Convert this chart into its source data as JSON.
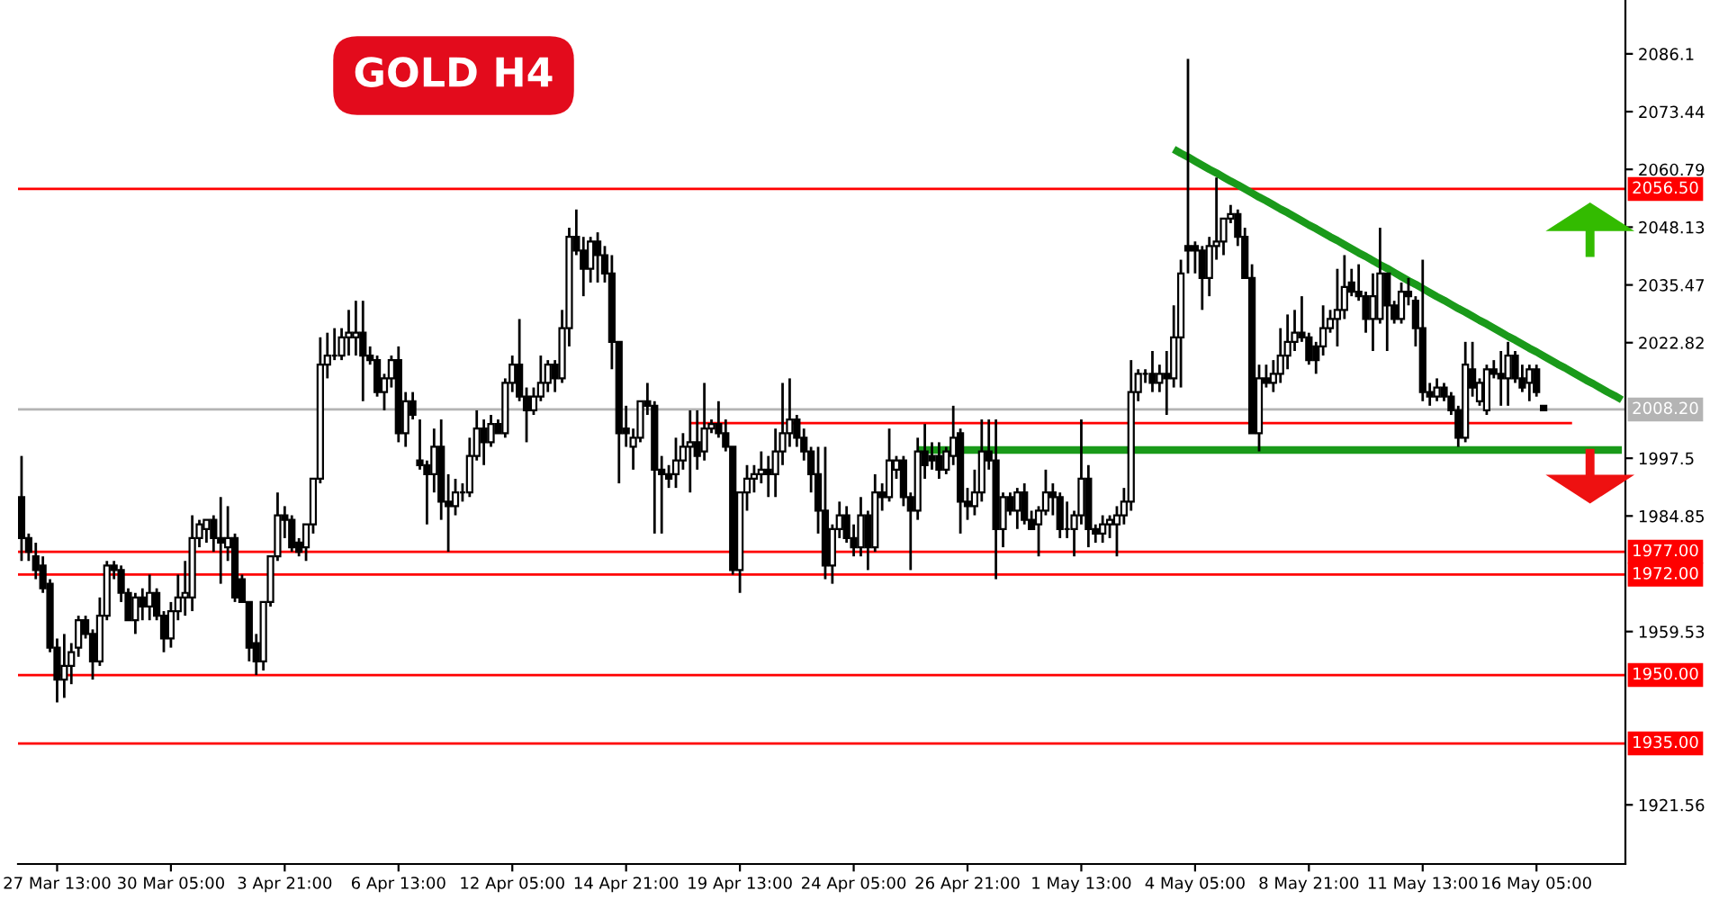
{
  "chart_data": {
    "type": "candlestick",
    "title": "GOLD H4",
    "categories": [
      null,
      null,
      null,
      null,
      null,
      "27 Mar 13:00",
      null,
      null,
      null,
      null,
      null,
      null,
      null,
      null,
      null,
      null,
      null,
      null,
      null,
      null,
      null,
      "30 Mar 05:00",
      null,
      null,
      null,
      null,
      null,
      null,
      null,
      null,
      null,
      null,
      null,
      null,
      null,
      null,
      null,
      "3 Apr 21:00",
      null,
      null,
      null,
      null,
      null,
      null,
      null,
      null,
      null,
      null,
      null,
      null,
      null,
      null,
      null,
      "6 Apr 13:00",
      null,
      null,
      null,
      null,
      null,
      null,
      null,
      null,
      null,
      null,
      null,
      null,
      null,
      null,
      null,
      "12 Apr 05:00",
      null,
      null,
      null,
      null,
      null,
      null,
      null,
      null,
      null,
      null,
      null,
      null,
      null,
      null,
      null,
      "14 Apr 21:00",
      null,
      null,
      null,
      null,
      null,
      null,
      null,
      null,
      null,
      null,
      null,
      null,
      null,
      null,
      null,
      "19 Apr 13:00",
      null,
      null,
      null,
      null,
      null,
      null,
      null,
      null,
      null,
      null,
      null,
      null,
      null,
      null,
      null,
      "24 Apr 05:00",
      null,
      null,
      null,
      null,
      null,
      null,
      null,
      null,
      null,
      null,
      null,
      null,
      null,
      null,
      null,
      "26 Apr 21:00",
      null,
      null,
      null,
      null,
      null,
      null,
      null,
      null,
      null,
      null,
      null,
      null,
      null,
      null,
      null,
      "1 May 13:00",
      null,
      null,
      null,
      null,
      null,
      null,
      null,
      null,
      null,
      null,
      null,
      null,
      null,
      null,
      null,
      "4 May 05:00",
      null,
      null,
      null,
      null,
      null,
      null,
      null,
      null,
      null,
      null,
      null,
      null,
      null,
      null,
      null,
      "8 May 21:00",
      null,
      null,
      null,
      null,
      null,
      null,
      null,
      null,
      null,
      null,
      null,
      null,
      null,
      null,
      null,
      "11 May 13:00",
      null,
      null,
      null,
      null,
      null,
      null,
      null,
      null,
      null,
      null,
      null,
      null,
      null,
      null,
      null,
      "16 May 05:00",
      null,
      null,
      null,
      null,
      null,
      null,
      null,
      null,
      null,
      null,
      null,
      null
    ],
    "ohlc": [
      [
        1989,
        1998,
        1975,
        1980
      ],
      [
        1980,
        1981,
        1975,
        1977
      ],
      [
        1976,
        1979,
        1971,
        1973
      ],
      [
        1974,
        1976,
        1968,
        1969
      ],
      [
        1970,
        1971,
        1955,
        1956
      ],
      [
        1956,
        1958,
        1944,
        1949
      ],
      [
        1949,
        1959,
        1945,
        1952
      ],
      [
        1952,
        1957,
        1948,
        1955
      ],
      [
        1956,
        1963,
        1954,
        1962
      ],
      [
        1962,
        1963,
        1958,
        1959
      ],
      [
        1959,
        1960,
        1949,
        1953
      ],
      [
        1953,
        1967,
        1952,
        1963
      ],
      [
        1963,
        1975,
        1962,
        1974
      ],
      [
        1974,
        1975,
        1971,
        1973
      ],
      [
        1973,
        1974,
        1966,
        1968
      ],
      [
        1968,
        1969,
        1962,
        1962
      ],
      [
        1962,
        1968,
        1959,
        1967
      ],
      [
        1967,
        1969,
        1962,
        1965
      ],
      [
        1965,
        1972,
        1962,
        1968
      ],
      [
        1968,
        1969,
        1962,
        1963
      ],
      [
        1963,
        1964,
        1955,
        1958
      ],
      [
        1958,
        1966,
        1956,
        1964
      ],
      [
        1964,
        1972,
        1962,
        1967
      ],
      [
        1967,
        1975,
        1963,
        1968
      ],
      [
        1967,
        1985,
        1964,
        1980
      ],
      [
        1980,
        1984,
        1978,
        1983
      ],
      [
        1982,
        1984,
        1979,
        1984
      ],
      [
        1984,
        1985,
        1977,
        1980
      ],
      [
        1980,
        1989,
        1970,
        1979
      ],
      [
        1978,
        1987,
        1975,
        1980
      ],
      [
        1980,
        1981,
        1966,
        1967
      ],
      [
        1971,
        1972,
        1966,
        1966
      ],
      [
        1966,
        1966,
        1953,
        1956
      ],
      [
        1957,
        1959,
        1950,
        1953
      ],
      [
        1953,
        1966,
        1951,
        1966
      ],
      [
        1966,
        1976,
        1965,
        1976
      ],
      [
        1976,
        1990,
        1975,
        1985
      ],
      [
        1985,
        1987,
        1980,
        1984
      ],
      [
        1984,
        1985,
        1977,
        1978
      ],
      [
        1979,
        1980,
        1976,
        1977
      ],
      [
        1978,
        1983,
        1975,
        1983
      ],
      [
        1983,
        1993,
        1981,
        1993
      ],
      [
        1993,
        2024,
        1992,
        2018
      ],
      [
        2018,
        2025,
        2015,
        2020
      ],
      [
        2020,
        2026,
        2019,
        2020
      ],
      [
        2020,
        2026,
        2019,
        2024
      ],
      [
        2024,
        2030,
        2020,
        2025
      ],
      [
        2024,
        2032,
        2020,
        2025
      ],
      [
        2025,
        2032,
        2010,
        2020
      ],
      [
        2020,
        2022,
        2018,
        2019
      ],
      [
        2019,
        2020,
        2011,
        2012
      ],
      [
        2012,
        2016,
        2008,
        2015
      ],
      [
        2015,
        2020,
        2013,
        2019
      ],
      [
        2019,
        2022,
        2001,
        2003
      ],
      [
        2003,
        2012,
        2000,
        2010
      ],
      [
        2010,
        2012,
        2006,
        2007
      ],
      [
        1997,
        2006,
        1995,
        1996
      ],
      [
        1996,
        1997,
        1983,
        1994
      ],
      [
        1994,
        2004,
        1990,
        2000
      ],
      [
        2000,
        2006,
        1984,
        1988
      ],
      [
        1988,
        1994,
        1977,
        1987
      ],
      [
        1987,
        1993,
        1985,
        1990
      ],
      [
        1990,
        1992,
        1988,
        1990
      ],
      [
        1990,
        2002,
        1989,
        1998
      ],
      [
        1998,
        2008,
        1997,
        2004
      ],
      [
        2004,
        2006,
        1996,
        2001
      ],
      [
        2001,
        2007,
        2000,
        2005
      ],
      [
        2005,
        2006,
        2003,
        2003
      ],
      [
        2003,
        2015,
        2002,
        2014
      ],
      [
        2014,
        2020,
        2012,
        2018
      ],
      [
        2018,
        2028,
        2010,
        2011
      ],
      [
        2011,
        2013,
        2001,
        2008
      ],
      [
        2008,
        2013,
        2007,
        2011
      ],
      [
        2011,
        2020,
        2010,
        2014
      ],
      [
        2014,
        2019,
        2012,
        2018
      ],
      [
        2018,
        2019,
        2012,
        2015
      ],
      [
        2015,
        2030,
        2014,
        2026
      ],
      [
        2026,
        2048,
        2022,
        2046
      ],
      [
        2046,
        2052,
        2042,
        2043
      ],
      [
        2043,
        2046,
        2033,
        2039
      ],
      [
        2039,
        2046,
        2036,
        2045
      ],
      [
        2045,
        2047,
        2036,
        2042
      ],
      [
        2042,
        2044,
        2036,
        2038
      ],
      [
        2038,
        2042,
        2017,
        2023
      ],
      [
        2023,
        2023,
        1992,
        2003
      ],
      [
        2004,
        2009,
        2000,
        2003
      ],
      [
        2000,
        2004,
        1995,
        2002
      ],
      [
        2002,
        2010,
        2001,
        2010
      ],
      [
        2010,
        2014,
        2007,
        2009
      ],
      [
        2009,
        2010,
        1981,
        1995
      ],
      [
        1995,
        1998,
        1981,
        1994
      ],
      [
        1994,
        1996,
        1991,
        1993
      ],
      [
        1994,
        2002,
        1991,
        1997
      ],
      [
        1997,
        2003,
        1995,
        2000
      ],
      [
        2000,
        2008,
        1990,
        2001
      ],
      [
        2001,
        2008,
        1995,
        1998
      ],
      [
        1999,
        2014,
        1997,
        2004
      ],
      [
        2004,
        2006,
        2003,
        2005
      ],
      [
        2005,
        2010,
        2002,
        2003
      ],
      [
        2003,
        2006,
        1999,
        2000
      ],
      [
        2000,
        2000,
        1972,
        1973
      ],
      [
        1973,
        1990,
        1968,
        1990
      ],
      [
        1990,
        1996,
        1986,
        1993
      ],
      [
        1993,
        1996,
        1990,
        1994
      ],
      [
        1994,
        1999,
        1992,
        1995
      ],
      [
        1995,
        1998,
        1989,
        1994
      ],
      [
        1994,
        2004,
        1989,
        1999
      ],
      [
        1999,
        2014,
        1996,
        2003
      ],
      [
        2003,
        2015,
        2000,
        2006
      ],
      [
        2006,
        2007,
        2000,
        2002
      ],
      [
        2002,
        2004,
        1997,
        1999
      ],
      [
        1999,
        2000,
        1990,
        1994
      ],
      [
        1994,
        2000,
        1981,
        1986
      ],
      [
        1986,
        2000,
        1971,
        1974
      ],
      [
        1974,
        1983,
        1970,
        1982
      ],
      [
        1982,
        1988,
        1980,
        1985
      ],
      [
        1985,
        1987,
        1979,
        1980
      ],
      [
        1980,
        1983,
        1976,
        1978
      ],
      [
        1978,
        1989,
        1976,
        1985
      ],
      [
        1985,
        1986,
        1973,
        1978
      ],
      [
        1978,
        1994,
        1977,
        1990
      ],
      [
        1990,
        1992,
        1986,
        1989
      ],
      [
        1989,
        2004,
        1988,
        1997
      ],
      [
        1995,
        1998,
        1993,
        1997
      ],
      [
        1997,
        1998,
        1987,
        1989
      ],
      [
        1989,
        1990,
        1973,
        1986
      ],
      [
        1986,
        2002,
        1984,
        1999
      ],
      [
        1999,
        2005,
        1993,
        1996
      ],
      [
        1998,
        2001,
        1995,
        1997
      ],
      [
        1998,
        2001,
        1993,
        1995
      ],
      [
        1995,
        2000,
        1994,
        1999
      ],
      [
        1998,
        2009,
        1996,
        2002
      ],
      [
        2003,
        2004,
        1981,
        1988
      ],
      [
        1988,
        1991,
        1984,
        1987
      ],
      [
        1987,
        1995,
        1985,
        1990
      ],
      [
        1990,
        2006,
        1988,
        1999
      ],
      [
        1999,
        2006,
        1995,
        1997
      ],
      [
        1997,
        2006,
        1971,
        1982
      ],
      [
        1982,
        1990,
        1978,
        1989
      ],
      [
        1989,
        1990,
        1985,
        1986
      ],
      [
        1986,
        1991,
        1982,
        1990
      ],
      [
        1990,
        1992,
        1983,
        1984
      ],
      [
        1984,
        1986,
        1982,
        1982
      ],
      [
        1983,
        1987,
        1976,
        1986
      ],
      [
        1986,
        1995,
        1985,
        1990
      ],
      [
        1990,
        1992,
        1985,
        1989
      ],
      [
        1989,
        1990,
        1980,
        1982
      ],
      [
        1982,
        1988,
        1980,
        1982
      ],
      [
        1982,
        1986,
        1976,
        1985
      ],
      [
        1985,
        2006,
        1983,
        1993
      ],
      [
        1993,
        1996,
        1978,
        1982
      ],
      [
        1982,
        1983,
        1979,
        1981
      ],
      [
        1981,
        1985,
        1979,
        1983
      ],
      [
        1983,
        1985,
        1980,
        1984
      ],
      [
        1983,
        1987,
        1976,
        1985
      ],
      [
        1985,
        1991,
        1983,
        1988
      ],
      [
        1988,
        2019,
        1986,
        2012
      ],
      [
        2012,
        2017,
        2010,
        2016
      ],
      [
        2016,
        2017,
        2014,
        2016
      ],
      [
        2016,
        2021,
        2012,
        2014
      ],
      [
        2014,
        2018,
        2012,
        2016
      ],
      [
        2016,
        2021,
        2007,
        2015
      ],
      [
        2015,
        2031,
        2013,
        2024
      ],
      [
        2024,
        2041,
        2013,
        2038
      ],
      [
        2044,
        2085,
        2038,
        2043
      ],
      [
        2044,
        2045,
        2038,
        2043
      ],
      [
        2043,
        2044,
        2030,
        2037
      ],
      [
        2037,
        2046,
        2033,
        2044
      ],
      [
        2044,
        2059,
        2041,
        2045
      ],
      [
        2045,
        2050,
        2042,
        2050
      ],
      [
        2050,
        2053,
        2049,
        2051
      ],
      [
        2051,
        2052,
        2044,
        2046
      ],
      [
        2046,
        2048,
        2037,
        2037
      ],
      [
        2037,
        2040,
        2003,
        2003
      ],
      [
        2003,
        2018,
        1999,
        2015
      ],
      [
        2015,
        2018,
        2013,
        2014
      ],
      [
        2014,
        2019,
        2012,
        2016
      ],
      [
        2016,
        2026,
        2014,
        2020
      ],
      [
        2020,
        2029,
        2017,
        2023
      ],
      [
        2023,
        2030,
        2021,
        2025
      ],
      [
        2025,
        2033,
        2023,
        2024
      ],
      [
        2024,
        2025,
        2018,
        2019
      ],
      [
        2022,
        2023,
        2016,
        2019
      ],
      [
        2022,
        2031,
        2020,
        2026
      ],
      [
        2026,
        2030,
        2025,
        2028
      ],
      [
        2028,
        2039,
        2022,
        2030
      ],
      [
        2030,
        2042,
        2028,
        2035
      ],
      [
        2036,
        2039,
        2033,
        2034
      ],
      [
        2034,
        2040,
        2032,
        2033
      ],
      [
        2033,
        2034,
        2025,
        2028
      ],
      [
        2028,
        2038,
        2021,
        2033
      ],
      [
        2028,
        2048,
        2027,
        2038
      ],
      [
        2038,
        2038,
        2021,
        2031
      ],
      [
        2031,
        2032,
        2027,
        2028
      ],
      [
        2028,
        2036,
        2027,
        2034
      ],
      [
        2034,
        2037,
        2031,
        2033
      ],
      [
        2032,
        2033,
        2022,
        2026
      ],
      [
        2026,
        2041,
        2010,
        2012
      ],
      [
        2012,
        2014,
        2009,
        2011
      ],
      [
        2011,
        2015,
        2010,
        2013
      ],
      [
        2013,
        2014,
        2010,
        2011
      ],
      [
        2011,
        2012,
        2007,
        2008
      ],
      [
        2008,
        2009,
        2000,
        2002
      ],
      [
        2002,
        2023,
        2001,
        2018
      ],
      [
        2017,
        2023,
        2011,
        2013
      ],
      [
        2010,
        2015,
        2009,
        2014
      ],
      [
        2008,
        2018,
        2007,
        2017
      ],
      [
        2017,
        2019,
        2015,
        2016
      ],
      [
        2016,
        2021,
        2009,
        2015
      ],
      [
        2015,
        2023,
        2009,
        2020
      ],
      [
        2020,
        2021,
        2014,
        2015
      ],
      [
        2015,
        2018,
        2012,
        2013
      ],
      [
        2014,
        2018,
        2010,
        2017
      ],
      [
        2017,
        2018,
        2011,
        2012
      ],
      [
        2009,
        2009,
        2008,
        2008
      ],
      null,
      null,
      null,
      null,
      null,
      null,
      null,
      null,
      null,
      null,
      null
    ],
    "series": [
      {
        "type": "line",
        "color": "#1a9a1a",
        "values": [
          null,
          null,
          null,
          null,
          null,
          null,
          null,
          null,
          null,
          null,
          null,
          null,
          null,
          null,
          null,
          null,
          null,
          null,
          null,
          null,
          null,
          null,
          null,
          null,
          null,
          null,
          null,
          null,
          null,
          null,
          null,
          null,
          null,
          null,
          null,
          null,
          null,
          null,
          null,
          null,
          null,
          null,
          null,
          null,
          null,
          null,
          null,
          null,
          null,
          null,
          null,
          null,
          null,
          null,
          null,
          null,
          null,
          null,
          null,
          null,
          null,
          null,
          null,
          null,
          null,
          null,
          null,
          null,
          null,
          null,
          null,
          null,
          null,
          null,
          null,
          null,
          null,
          null,
          null,
          null,
          null,
          null,
          null,
          null,
          null,
          null,
          null,
          null,
          null,
          null,
          null,
          null,
          null,
          null,
          null,
          null,
          null,
          null,
          null,
          null,
          null,
          null,
          null,
          null,
          null,
          null,
          null,
          null,
          null,
          null,
          null,
          null,
          null,
          null,
          null,
          null,
          null,
          null,
          null,
          null,
          null,
          null,
          null,
          null,
          null,
          null,
          1999.3,
          1999.3,
          1999.3,
          1999.3,
          1999.3,
          1999.3,
          1999.3,
          1999.3,
          1999.3,
          1999.3,
          1999.3,
          1999.3,
          1999.3,
          1999.3,
          1999.3,
          1999.3,
          1999.3,
          1999.3,
          1999.3,
          1999.3,
          1999.3,
          1999.3,
          1999.3,
          1999.3,
          1999.3,
          1999.3,
          1999.3,
          1999.3,
          1999.3,
          1999.3,
          1999.3,
          1999.3,
          1999.3,
          1999.3,
          1999.3,
          1999.3,
          1999.3,
          1999.3,
          1999.3,
          1999.3,
          1999.3,
          1999.3,
          1999.3,
          1999.3,
          1999.3,
          1999.3,
          1999.3,
          1999.3,
          1999.3,
          1999.3,
          1999.3,
          1999.3,
          1999.3,
          1999.3,
          1999.3,
          1999.3,
          1999.3,
          1999.3,
          1999.3,
          1999.3,
          1999.3,
          1999.3,
          1999.3,
          1999.3,
          1999.3,
          1999.3,
          1999.3,
          1999.3,
          1999.3,
          1999.3,
          1999.3,
          1999.3,
          1999.3,
          1999.3,
          1999.3,
          1999.3,
          1999.3,
          1999.3,
          1999.3,
          1999.3,
          1999.3,
          1999.3,
          1999.3,
          1999.3,
          1999.3,
          1999.3,
          1999.3,
          1999.3,
          1999.3,
          1999.3,
          1999.3,
          1999.3,
          1999.3,
          1999.3,
          1999.3,
          1999.3,
          1999.3,
          1999.3,
          1999.3,
          1999.3
        ]
      },
      {
        "type": "line",
        "color": "#1a9a1a",
        "values": [
          null,
          null,
          null,
          null,
          null,
          null,
          null,
          null,
          null,
          null,
          null,
          null,
          null,
          null,
          null,
          null,
          null,
          null,
          null,
          null,
          null,
          null,
          null,
          null,
          null,
          null,
          null,
          null,
          null,
          null,
          null,
          null,
          null,
          null,
          null,
          null,
          null,
          null,
          null,
          null,
          null,
          null,
          null,
          null,
          null,
          null,
          null,
          null,
          null,
          null,
          null,
          null,
          null,
          null,
          null,
          null,
          null,
          null,
          null,
          null,
          null,
          null,
          null,
          null,
          null,
          null,
          null,
          null,
          null,
          null,
          null,
          null,
          null,
          null,
          null,
          null,
          null,
          null,
          null,
          null,
          null,
          null,
          null,
          null,
          null,
          null,
          null,
          null,
          null,
          null,
          null,
          null,
          null,
          null,
          null,
          null,
          null,
          null,
          null,
          null,
          null,
          null,
          null,
          null,
          null,
          null,
          null,
          null,
          null,
          null,
          null,
          null,
          null,
          null,
          null,
          null,
          null,
          null,
          null,
          null,
          null,
          null,
          null,
          null,
          null,
          null,
          null,
          null,
          null,
          null,
          null,
          null,
          null,
          null,
          null,
          null,
          null,
          null,
          null,
          null,
          null,
          null,
          null,
          null,
          null,
          null,
          null,
          null,
          null,
          null,
          null,
          null,
          null,
          null,
          null,
          null,
          null,
          null,
          null,
          null,
          null,
          null,
          2065.2,
          2064.3,
          2063.5,
          2062.6,
          2061.7,
          2060.8,
          2060.0,
          2059.1,
          2058.2,
          2057.4,
          2056.5,
          2055.6,
          2054.7,
          2053.9,
          2053.0,
          2052.1,
          2051.3,
          2050.4,
          2049.5,
          2048.6,
          2047.8,
          2046.9,
          2046.0,
          2045.2,
          2044.3,
          2043.4,
          2042.5,
          2041.7,
          2040.8,
          2039.9,
          2039.1,
          2038.2,
          2037.3,
          2036.4,
          2035.6,
          2034.7,
          2033.8,
          2032.9,
          2032.1,
          2031.2,
          2030.3,
          2029.5,
          2028.6,
          2027.7,
          2026.9,
          2026.0,
          2025.1,
          2024.2,
          2023.4,
          2022.5,
          2021.6,
          2020.8,
          2019.9,
          2019.0,
          2018.1,
          2017.3,
          2016.4,
          2015.5,
          2014.6,
          2013.8,
          2012.9,
          2012.0,
          2011.2,
          2010.3
        ]
      },
      {
        "type": "line",
        "color": "#ff0000",
        "values": [
          null,
          null,
          null,
          null,
          null,
          null,
          null,
          null,
          null,
          null,
          null,
          null,
          null,
          null,
          null,
          null,
          null,
          null,
          null,
          null,
          null,
          null,
          null,
          null,
          null,
          null,
          null,
          null,
          null,
          null,
          null,
          null,
          null,
          null,
          null,
          null,
          null,
          null,
          null,
          null,
          null,
          null,
          null,
          null,
          null,
          null,
          null,
          null,
          null,
          null,
          null,
          null,
          null,
          null,
          null,
          null,
          null,
          null,
          null,
          null,
          null,
          null,
          null,
          null,
          null,
          null,
          null,
          null,
          null,
          null,
          null,
          null,
          null,
          null,
          null,
          null,
          null,
          null,
          null,
          null,
          null,
          null,
          null,
          null,
          null,
          null,
          null,
          null,
          null,
          null,
          null,
          null,
          null,
          null,
          2005.2,
          2005.2,
          2005.2,
          2005.2,
          2005.2,
          2005.2,
          2005.2,
          2005.2,
          2005.2,
          2005.2,
          2005.2,
          2005.2,
          2005.2,
          2005.2,
          2005.2,
          2005.2,
          2005.2,
          2005.2,
          2005.2,
          2005.2,
          2005.2,
          2005.2,
          2005.2,
          2005.2,
          2005.2,
          2005.2,
          2005.2,
          2005.2,
          2005.2,
          2005.2,
          2005.2,
          2005.2,
          2005.2,
          2005.2,
          2005.2,
          2005.2,
          2005.2,
          2005.2,
          2005.2,
          2005.2,
          2005.2,
          2005.2,
          2005.2,
          2005.2,
          2005.2,
          2005.2,
          2005.2,
          2005.2,
          2005.2,
          2005.2,
          2005.2,
          2005.2,
          2005.2,
          2005.2,
          2005.2,
          2005.2,
          2005.2,
          2005.2,
          2005.2,
          2005.2,
          2005.2,
          2005.2,
          2005.2,
          2005.2,
          2005.2,
          2005.2,
          2005.2,
          2005.2,
          2005.2,
          2005.2,
          2005.2,
          2005.2,
          2005.2,
          2005.2,
          2005.2,
          2005.2,
          2005.2,
          2005.2,
          2005.2,
          2005.2,
          2005.2,
          2005.2,
          2005.2,
          2005.2,
          2005.2,
          2005.2,
          2005.2,
          2005.2,
          2005.2,
          2005.2,
          2005.2,
          2005.2,
          2005.2,
          2005.2,
          2005.2,
          2005.2,
          2005.2,
          2005.2,
          2005.2,
          2005.2,
          2005.2,
          2005.2,
          2005.2,
          2005.2,
          2005.2,
          2005.2,
          2005.2,
          2005.2,
          2005.2,
          2005.2,
          2005.2,
          2005.2,
          2005.2,
          2005.2,
          2005.2,
          2005.2,
          2005.2,
          2005.2,
          2005.2,
          2005.2,
          2005.2,
          2005.2,
          2005.2,
          2005.2,
          2005.2,
          null,
          null,
          null,
          null,
          null,
          null,
          null
        ]
      }
    ],
    "ref_lines": [
      {
        "axis": "y",
        "value": 2056.5,
        "label": "2056.50",
        "color": "#ff0000"
      },
      {
        "axis": "y",
        "value": 2008.2,
        "label": "2008.20",
        "color": "#b4b4b4"
      },
      {
        "axis": "y",
        "value": 1977,
        "label": "1977.00",
        "color": "#ff0000"
      },
      {
        "axis": "y",
        "value": 1972,
        "label": "1972.00",
        "color": "#ff0000"
      },
      {
        "axis": "y",
        "value": 1950,
        "label": "1950.00",
        "color": "#ff0000"
      },
      {
        "axis": "y",
        "value": 1935,
        "label": "1935.00",
        "color": "#ff0000"
      }
    ],
    "ylim": [
      1908.6,
      2097.9
    ],
    "yticks": [
      1921.56,
      1959.53,
      1984.85,
      1997.5,
      2022.82,
      2035.47,
      2048.13,
      2060.79,
      2073.44,
      2086.1
    ],
    "grid": false,
    "legend": false
  }
}
